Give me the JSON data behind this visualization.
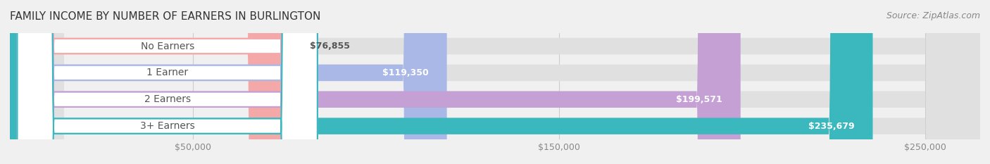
{
  "title": "FAMILY INCOME BY NUMBER OF EARNERS IN BURLINGTON",
  "source": "Source: ZipAtlas.com",
  "categories": [
    "No Earners",
    "1 Earner",
    "2 Earners",
    "3+ Earners"
  ],
  "values": [
    76855,
    119350,
    199571,
    235679
  ],
  "value_labels": [
    "$76,855",
    "$119,350",
    "$199,571",
    "$235,679"
  ],
  "bar_colors": [
    "#f4a8a8",
    "#aab8e8",
    "#c4a0d4",
    "#3ab8be"
  ],
  "label_colors": [
    "#f4a8a8",
    "#aab8e8",
    "#c4a0d4",
    "#3ab8be"
  ],
  "x_max": 265000,
  "x_ticks": [
    50000,
    150000,
    250000
  ],
  "x_tick_labels": [
    "$50,000",
    "$150,000",
    "$250,000"
  ],
  "background_color": "#f0f0f0",
  "bar_background": "#e8e8e8",
  "title_fontsize": 11,
  "source_fontsize": 9,
  "label_fontsize": 10,
  "value_fontsize": 9
}
